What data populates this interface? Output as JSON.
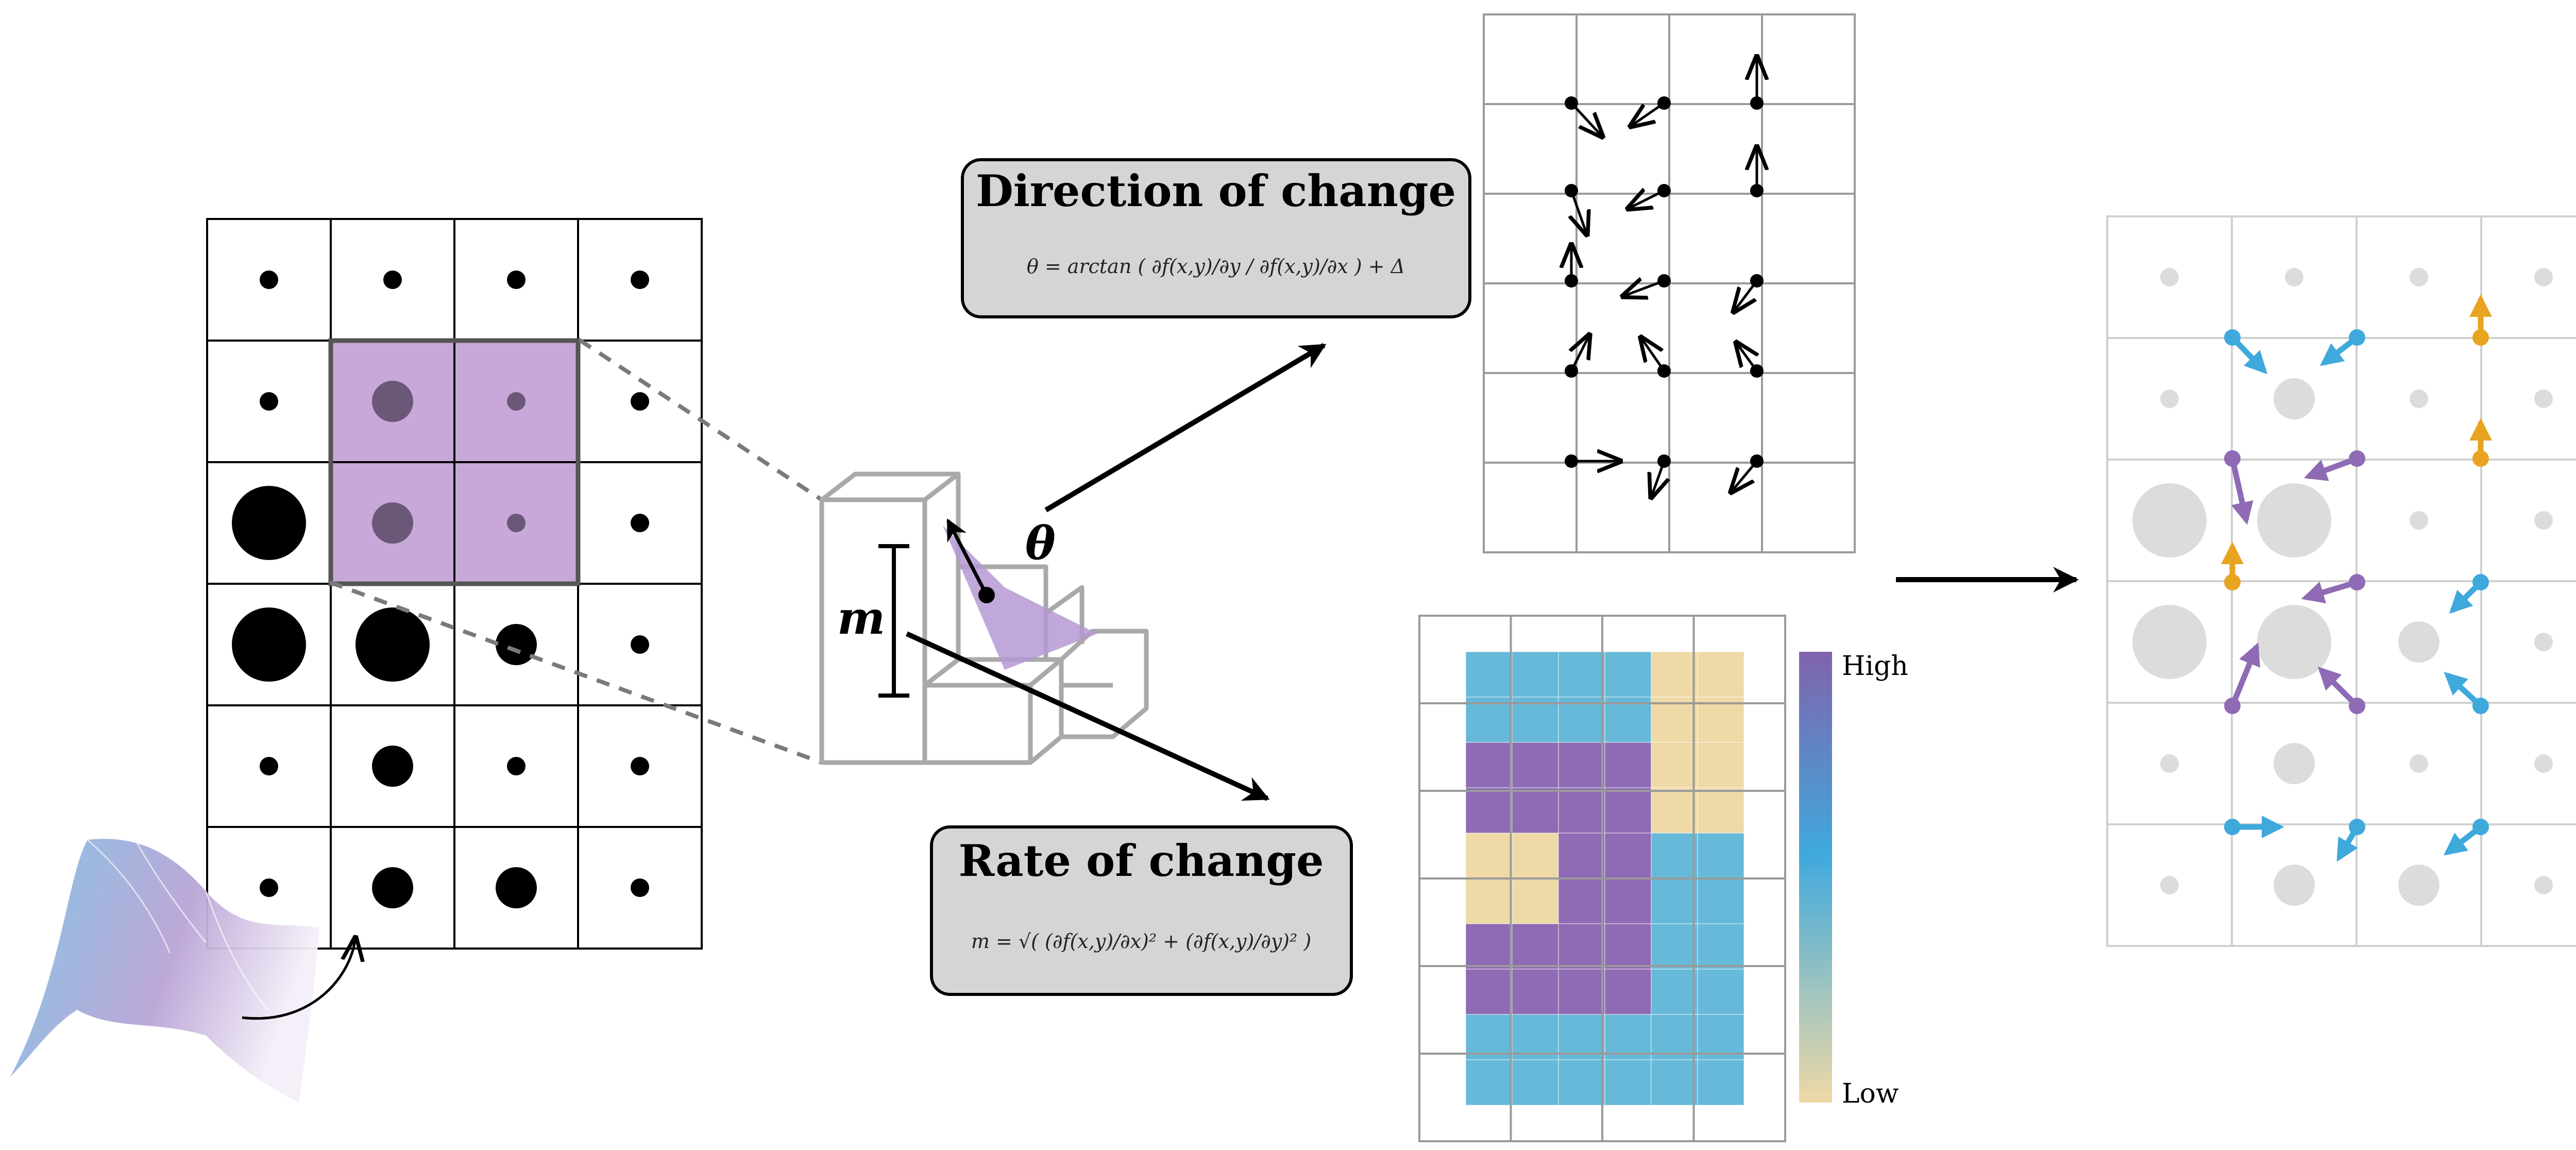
{
  "labels": {
    "direction_title": "Direction of change",
    "direction_formula": "θ = arctan ( ∂f(x,y)/∂y / ∂f(x,y)/∂x ) + Δ",
    "rate_title": "Rate of change",
    "rate_formula": "m = √( (∂f(x,y)/∂x)² + (∂f(x,y)/∂y)² )",
    "theta": "θ",
    "m": "m",
    "colorbar_high": "High",
    "colorbar_low": "Low"
  },
  "colors": {
    "purple": "#8e6bb4",
    "purple_light": "#c7a8d8",
    "blue": "#3fa9dc",
    "cyan_cell": "#66b9d9",
    "sand": "#efd9a6",
    "orange": "#e8a321",
    "gray_dot": "#dcdcdc",
    "grid_gray": "#bdbdbd",
    "box_fill": "#d5d5d5"
  },
  "input_grid": {
    "rows": 6,
    "cols": 4,
    "dot_sizes": [
      [
        1,
        1,
        1,
        1
      ],
      [
        1,
        2,
        1,
        1
      ],
      [
        3,
        2,
        1,
        1
      ],
      [
        3,
        3,
        2,
        1
      ],
      [
        1,
        2,
        1,
        1
      ],
      [
        1,
        2,
        2,
        1
      ]
    ],
    "highlight_cells": [
      [
        1,
        1
      ],
      [
        1,
        2
      ],
      [
        2,
        1
      ],
      [
        2,
        2
      ]
    ]
  },
  "magnitude_grid": {
    "rows": 10,
    "cols": 6,
    "cells": [
      [
        "cyan",
        "cyan",
        "cyan",
        "cyan",
        "sand",
        "sand"
      ],
      [
        "cyan",
        "cyan",
        "cyan",
        "cyan",
        "sand",
        "sand"
      ],
      [
        "purple",
        "purple",
        "purple",
        "purple",
        "sand",
        "sand"
      ],
      [
        "purple",
        "purple",
        "purple",
        "purple",
        "sand",
        "sand"
      ],
      [
        "sand",
        "sand",
        "purple",
        "purple",
        "cyan",
        "cyan"
      ],
      [
        "sand",
        "sand",
        "purple",
        "purple",
        "cyan",
        "cyan"
      ],
      [
        "purple",
        "purple",
        "purple",
        "purple",
        "cyan",
        "cyan"
      ],
      [
        "purple",
        "purple",
        "purple",
        "purple",
        "cyan",
        "cyan"
      ],
      [
        "cyan",
        "cyan",
        "cyan",
        "cyan",
        "cyan",
        "cyan"
      ],
      [
        "cyan",
        "cyan",
        "cyan",
        "cyan",
        "cyan",
        "cyan"
      ]
    ]
  },
  "output_grid": {
    "rows": 6,
    "cols": 4,
    "dot_sizes": [
      [
        1,
        1,
        1,
        1
      ],
      [
        1,
        2,
        1,
        1
      ],
      [
        3,
        3,
        1,
        1
      ],
      [
        3,
        3,
        2,
        1
      ],
      [
        1,
        2,
        1,
        1
      ],
      [
        1,
        2,
        2,
        1
      ]
    ]
  }
}
